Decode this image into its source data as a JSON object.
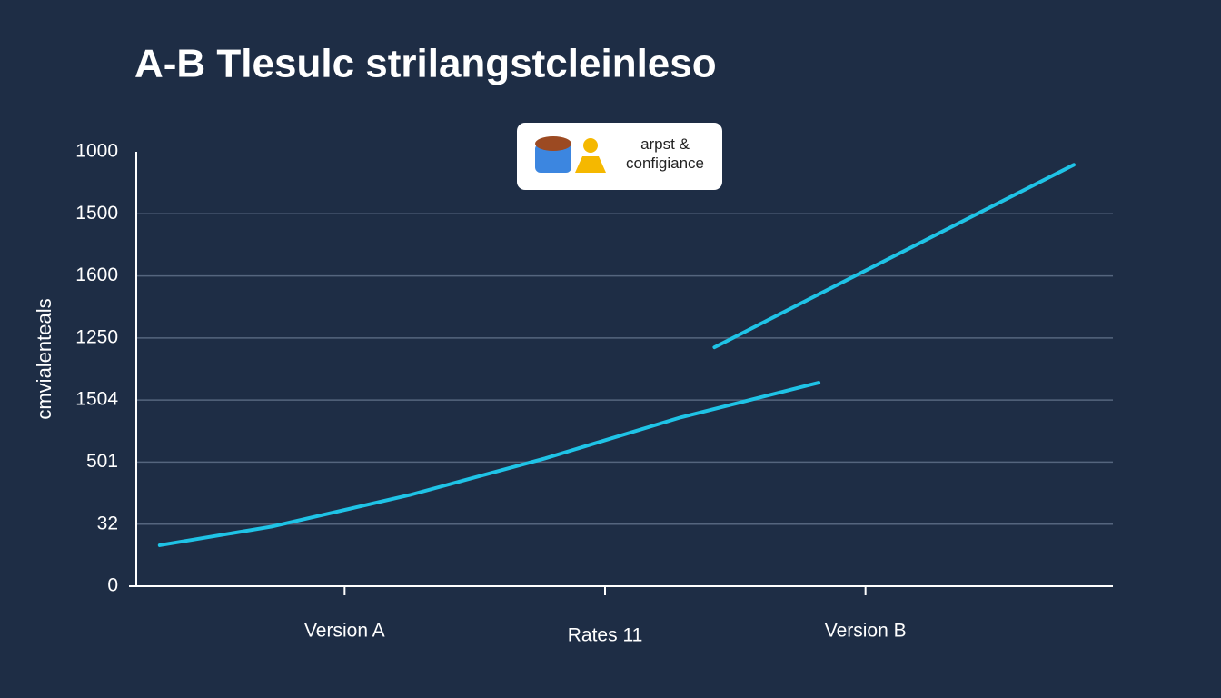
{
  "chart_data": {
    "type": "line",
    "title": "A-B Tlesulc strilangstcleinleso",
    "y_label": "cmvialenteals",
    "legend_label": "arpst & configiance",
    "xlim": [
      0.2,
      3.95
    ],
    "xticks": [
      {
        "value": 1,
        "label": "Version A"
      },
      {
        "value": 2,
        "label": "Rates 11"
      },
      {
        "value": 3,
        "label": "Version B"
      }
    ],
    "ylim": [
      0,
      7
    ],
    "yticks": [
      0,
      {
        "value": 1,
        "label": "32"
      },
      {
        "value": 2,
        "label": "501"
      },
      {
        "value": 3,
        "label": "1504"
      },
      {
        "value": 4,
        "label": "1250"
      },
      {
        "value": 5,
        "label": "1600"
      },
      {
        "value": 6,
        "label": "1500"
      },
      {
        "value": 7,
        "label": "1000"
      }
    ],
    "grid": true,
    "series": [
      {
        "color": "#1fc3e6",
        "x": [
          0.29,
          0.72,
          1.25,
          1.77,
          2.29,
          2.82
        ],
        "values": [
          0.66,
          0.96,
          1.47,
          2.06,
          2.72,
          3.28
        ]
      },
      {
        "color": "#1fc3e6",
        "x": [
          2.42,
          3.8
        ],
        "values": [
          3.85,
          6.79
        ]
      }
    ]
  }
}
